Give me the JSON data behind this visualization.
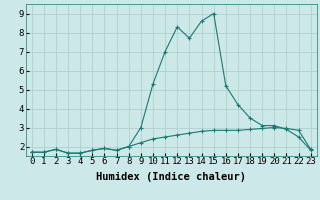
{
  "xlabel": "Humidex (Indice chaleur)",
  "x": [
    0,
    1,
    2,
    3,
    4,
    5,
    6,
    7,
    8,
    9,
    10,
    11,
    12,
    13,
    14,
    15,
    16,
    17,
    18,
    19,
    20,
    21,
    22,
    23
  ],
  "line1": [
    1.7,
    1.7,
    1.85,
    1.65,
    1.65,
    1.8,
    1.9,
    1.8,
    2.0,
    3.0,
    5.3,
    7.0,
    8.3,
    7.7,
    8.6,
    9.0,
    5.2,
    4.2,
    3.5,
    3.1,
    3.1,
    2.9,
    2.5,
    1.8
  ],
  "line2": [
    1.7,
    1.7,
    1.85,
    1.65,
    1.65,
    1.8,
    1.9,
    1.8,
    2.0,
    2.2,
    2.4,
    2.5,
    2.6,
    2.7,
    2.8,
    2.85,
    2.85,
    2.85,
    2.9,
    2.95,
    3.0,
    2.95,
    2.85,
    1.85
  ],
  "line_color": "#1a7a6e",
  "bg_color": "#cce8e8",
  "grid_color": "#aacccc",
  "ylim": [
    1.5,
    9.5
  ],
  "yticks": [
    2,
    3,
    4,
    5,
    6,
    7,
    8,
    9
  ],
  "xticks": [
    0,
    1,
    2,
    3,
    4,
    5,
    6,
    7,
    8,
    9,
    10,
    11,
    12,
    13,
    14,
    15,
    16,
    17,
    18,
    19,
    20,
    21,
    22,
    23
  ],
  "tick_fontsize": 6.5,
  "label_fontsize": 7.5,
  "marker": "+",
  "marker_size": 3,
  "line_width": 0.8
}
